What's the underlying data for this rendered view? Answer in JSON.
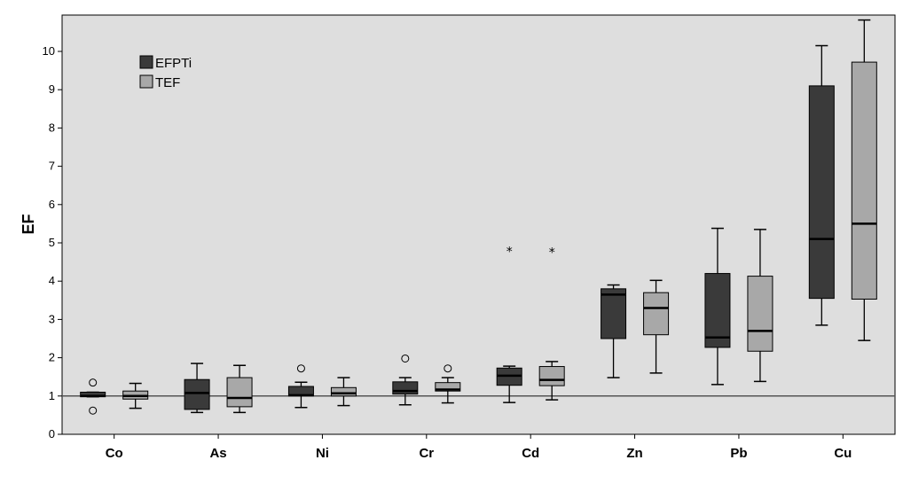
{
  "chart_data": {
    "type": "boxplot",
    "ylabel": "EF",
    "xlabel": "",
    "ylim": [
      0,
      10.85
    ],
    "yticks": [
      0,
      1,
      2,
      3,
      4,
      5,
      6,
      7,
      8,
      9,
      10
    ],
    "reference_line": 1,
    "legend_position": "top-left",
    "categories": [
      "Co",
      "As",
      "Ni",
      "Cr",
      "Cd",
      "Zn",
      "Pb",
      "Cu"
    ],
    "series": [
      {
        "name": "EFPTi",
        "color": "#3a3a3a",
        "boxes": [
          {
            "whisker_low": 0.98,
            "q1": 0.98,
            "median": 1.0,
            "q3": 1.1,
            "whisker_high": 1.1,
            "outliers": [
              0.62,
              1.35
            ],
            "extremes": []
          },
          {
            "whisker_low": 0.57,
            "q1": 0.65,
            "median": 1.08,
            "q3": 1.43,
            "whisker_high": 1.85,
            "outliers": [],
            "extremes": []
          },
          {
            "whisker_low": 0.7,
            "q1": 1.0,
            "median": 1.02,
            "q3": 1.25,
            "whisker_high": 1.36,
            "outliers": [
              1.72
            ],
            "extremes": []
          },
          {
            "whisker_low": 0.77,
            "q1": 1.05,
            "median": 1.13,
            "q3": 1.37,
            "whisker_high": 1.48,
            "outliers": [
              1.98
            ],
            "extremes": []
          },
          {
            "whisker_low": 0.83,
            "q1": 1.28,
            "median": 1.53,
            "q3": 1.73,
            "whisker_high": 1.78,
            "outliers": [],
            "extremes": [
              4.8
            ]
          },
          {
            "whisker_low": 1.48,
            "q1": 2.5,
            "median": 3.65,
            "q3": 3.8,
            "whisker_high": 3.9,
            "outliers": [],
            "extremes": []
          },
          {
            "whisker_low": 1.3,
            "q1": 2.27,
            "median": 2.53,
            "q3": 4.2,
            "whisker_high": 5.38,
            "outliers": [],
            "extremes": []
          },
          {
            "whisker_low": 2.85,
            "q1": 3.55,
            "median": 5.1,
            "q3": 9.1,
            "whisker_high": 10.15,
            "outliers": [],
            "extremes": []
          }
        ]
      },
      {
        "name": "TEF",
        "color": "#a8a8a8",
        "boxes": [
          {
            "whisker_low": 0.68,
            "q1": 0.92,
            "median": 1.0,
            "q3": 1.13,
            "whisker_high": 1.33,
            "outliers": [],
            "extremes": []
          },
          {
            "whisker_low": 0.57,
            "q1": 0.72,
            "median": 0.95,
            "q3": 1.48,
            "whisker_high": 1.8,
            "outliers": [],
            "extremes": []
          },
          {
            "whisker_low": 0.75,
            "q1": 1.0,
            "median": 1.07,
            "q3": 1.22,
            "whisker_high": 1.48,
            "outliers": [],
            "extremes": []
          },
          {
            "whisker_low": 0.82,
            "q1": 1.13,
            "median": 1.17,
            "q3": 1.35,
            "whisker_high": 1.48,
            "outliers": [
              1.72
            ],
            "extremes": []
          },
          {
            "whisker_low": 0.9,
            "q1": 1.27,
            "median": 1.42,
            "q3": 1.77,
            "whisker_high": 1.9,
            "outliers": [],
            "extremes": [
              4.78
            ]
          },
          {
            "whisker_low": 1.6,
            "q1": 2.6,
            "median": 3.3,
            "q3": 3.7,
            "whisker_high": 4.02,
            "outliers": [],
            "extremes": []
          },
          {
            "whisker_low": 1.38,
            "q1": 2.17,
            "median": 2.7,
            "q3": 4.13,
            "whisker_high": 5.35,
            "outliers": [],
            "extremes": []
          },
          {
            "whisker_low": 2.45,
            "q1": 3.53,
            "median": 5.5,
            "q3": 9.72,
            "whisker_high": 10.82,
            "outliers": [],
            "extremes": []
          }
        ]
      }
    ]
  }
}
